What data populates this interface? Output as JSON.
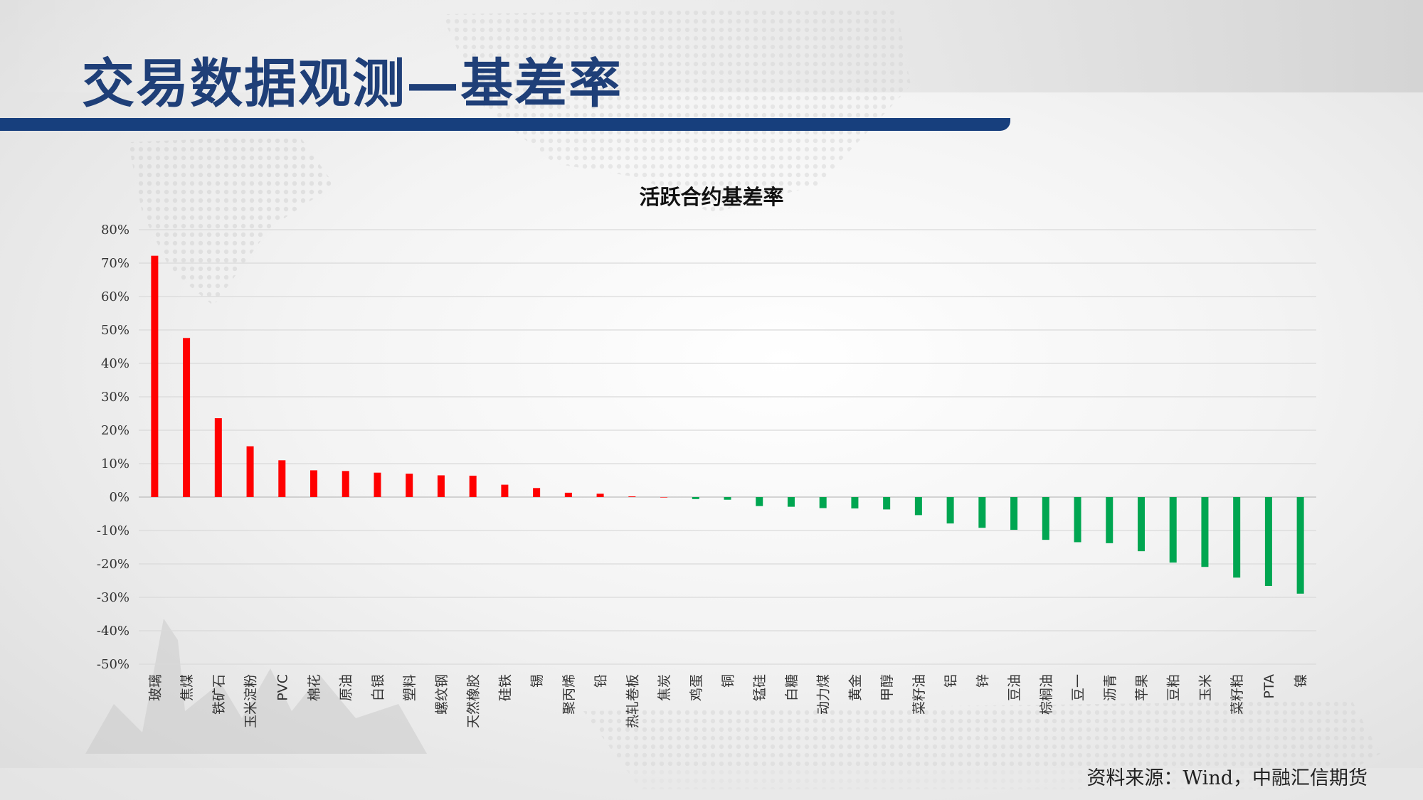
{
  "slide": {
    "title": "交易数据观测—基差率",
    "source": "资料来源：Wind，中融汇信期货"
  },
  "colors": {
    "positive": "#ff0000",
    "negative": "#00a651",
    "title": "#1f3f78",
    "bar": "#173f7d"
  },
  "chart_data": {
    "type": "bar",
    "title": "活跃合约基差率",
    "xlabel": "",
    "ylabel": "",
    "ylim": [
      -50,
      80
    ],
    "yticks": [
      80,
      70,
      60,
      50,
      40,
      30,
      20,
      10,
      0,
      -10,
      -20,
      -30,
      -40,
      -50
    ],
    "ytick_labels": [
      "80%",
      "70%",
      "60%",
      "50%",
      "40%",
      "30%",
      "20%",
      "10%",
      "0%",
      "-10%",
      "-20%",
      "-30%",
      "-40%",
      "-50%"
    ],
    "grid": true,
    "legend": "none",
    "categories": [
      "玻璃",
      "焦煤",
      "铁矿石",
      "玉米淀粉",
      "PVC",
      "棉花",
      "原油",
      "白银",
      "塑料",
      "螺纹钢",
      "天然橡胶",
      "硅铁",
      "锡",
      "聚丙烯",
      "铅",
      "热轧卷板",
      "焦炭",
      "鸡蛋",
      "铜",
      "锰硅",
      "白糖",
      "动力煤",
      "黄金",
      "甲醇",
      "菜籽油",
      "铝",
      "锌",
      "豆油",
      "棕榈油",
      "豆一",
      "沥青",
      "苹果",
      "豆粕",
      "玉米",
      "菜籽粕",
      "PTA",
      "镍"
    ],
    "values": [
      72.2,
      47.6,
      23.6,
      15.2,
      11.0,
      8.0,
      7.8,
      7.3,
      7.0,
      6.5,
      6.4,
      3.7,
      2.7,
      1.3,
      1.0,
      0.2,
      0.0,
      -0.6,
      -0.8,
      -2.7,
      -2.9,
      -3.3,
      -3.4,
      -3.7,
      -5.4,
      -7.9,
      -9.2,
      -9.8,
      -12.8,
      -13.5,
      -13.8,
      -16.2,
      -19.6,
      -20.9,
      -24.1,
      -26.6,
      -28.9
    ]
  }
}
